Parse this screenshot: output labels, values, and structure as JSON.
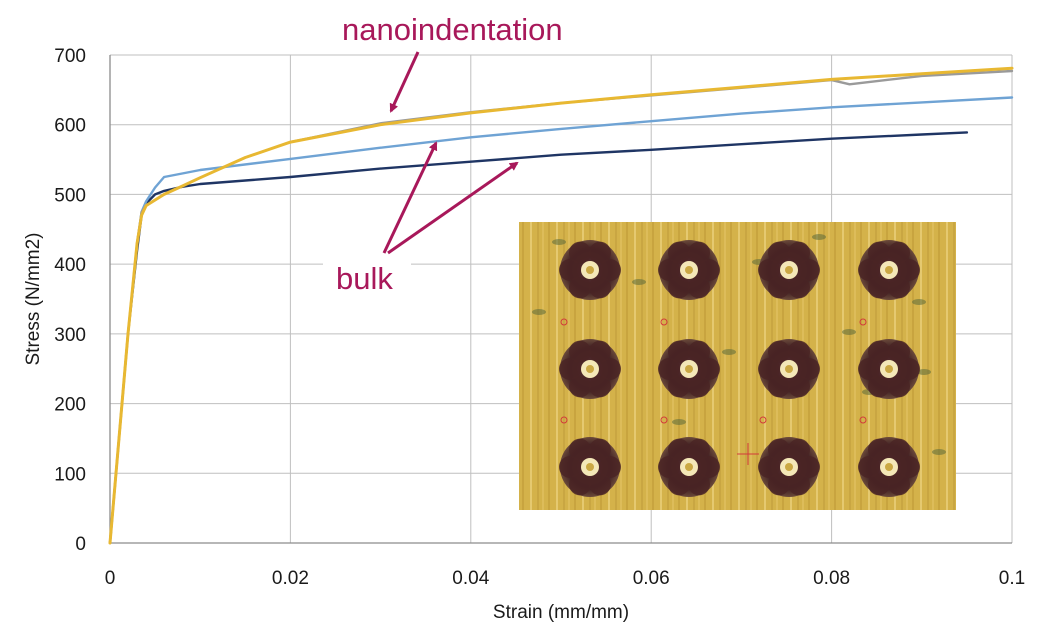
{
  "chart_data": {
    "type": "line",
    "xlabel": "Strain (mm/mm)",
    "ylabel": "Stress (N/mm2)",
    "xlim": [
      0,
      0.1
    ],
    "ylim": [
      0,
      700
    ],
    "x_ticks": [
      0,
      0.02,
      0.04,
      0.06,
      0.08,
      0.1
    ],
    "x_tick_labels": [
      "0",
      "0.02",
      "0.04",
      "0.06",
      "0.08",
      "0.1"
    ],
    "y_ticks": [
      0,
      100,
      200,
      300,
      400,
      500,
      600,
      700
    ],
    "y_tick_labels": [
      "0",
      "100",
      "200",
      "300",
      "400",
      "500",
      "600",
      "700"
    ],
    "grid": true,
    "series": [
      {
        "color": "#1f3564",
        "points": [
          [
            0,
            0
          ],
          [
            0.001,
            150
          ],
          [
            0.002,
            300
          ],
          [
            0.003,
            420
          ],
          [
            0.0035,
            470
          ],
          [
            0.004,
            487
          ],
          [
            0.005,
            500
          ],
          [
            0.006,
            505
          ],
          [
            0.008,
            511
          ],
          [
            0.01,
            515
          ],
          [
            0.02,
            525
          ],
          [
            0.03,
            537
          ],
          [
            0.04,
            547
          ],
          [
            0.05,
            557
          ],
          [
            0.06,
            564
          ],
          [
            0.07,
            572
          ],
          [
            0.08,
            580
          ],
          [
            0.09,
            586
          ],
          [
            0.095,
            589
          ]
        ]
      },
      {
        "color": "#6fa3d4",
        "points": [
          [
            0,
            0
          ],
          [
            0.001,
            150
          ],
          [
            0.002,
            300
          ],
          [
            0.003,
            430
          ],
          [
            0.0035,
            475
          ],
          [
            0.004,
            490
          ],
          [
            0.005,
            510
          ],
          [
            0.006,
            525
          ],
          [
            0.008,
            530
          ],
          [
            0.01,
            535
          ],
          [
            0.02,
            551
          ],
          [
            0.03,
            567
          ],
          [
            0.04,
            582
          ],
          [
            0.05,
            594
          ],
          [
            0.06,
            605
          ],
          [
            0.07,
            616
          ],
          [
            0.08,
            625
          ],
          [
            0.09,
            632
          ],
          [
            0.1,
            639
          ]
        ]
      },
      {
        "color": "#9a9a9a",
        "points": [
          [
            0,
            0
          ],
          [
            0.001,
            150
          ],
          [
            0.002,
            300
          ],
          [
            0.003,
            430
          ],
          [
            0.0035,
            475
          ],
          [
            0.004,
            484
          ],
          [
            0.005,
            492
          ],
          [
            0.006,
            500
          ],
          [
            0.008,
            512
          ],
          [
            0.01,
            524
          ],
          [
            0.015,
            553
          ],
          [
            0.02,
            575
          ],
          [
            0.03,
            602
          ],
          [
            0.04,
            618
          ],
          [
            0.05,
            631
          ],
          [
            0.06,
            642
          ],
          [
            0.07,
            653
          ],
          [
            0.08,
            664
          ],
          [
            0.082,
            658
          ],
          [
            0.09,
            670
          ],
          [
            0.1,
            677
          ]
        ]
      },
      {
        "color": "#e8b832",
        "points": [
          [
            0,
            0
          ],
          [
            0.001,
            150
          ],
          [
            0.002,
            300
          ],
          [
            0.003,
            430
          ],
          [
            0.0035,
            470
          ],
          [
            0.004,
            484
          ],
          [
            0.005,
            492
          ],
          [
            0.006,
            500
          ],
          [
            0.008,
            512
          ],
          [
            0.01,
            524
          ],
          [
            0.015,
            553
          ],
          [
            0.02,
            575
          ],
          [
            0.03,
            600
          ],
          [
            0.04,
            617
          ],
          [
            0.05,
            631
          ],
          [
            0.06,
            643
          ],
          [
            0.07,
            654
          ],
          [
            0.08,
            665
          ],
          [
            0.09,
            673
          ],
          [
            0.1,
            681
          ]
        ]
      }
    ],
    "annotations": [
      {
        "text": "nanoindentation",
        "color": "#a8185a"
      },
      {
        "text": "bulk",
        "color": "#a8185a"
      }
    ],
    "inset_image": {
      "kind": "micrograph",
      "grid": {
        "rows": 3,
        "cols": 4
      },
      "background_color": "#d4b24a",
      "indent_color": "#4a2525"
    }
  }
}
